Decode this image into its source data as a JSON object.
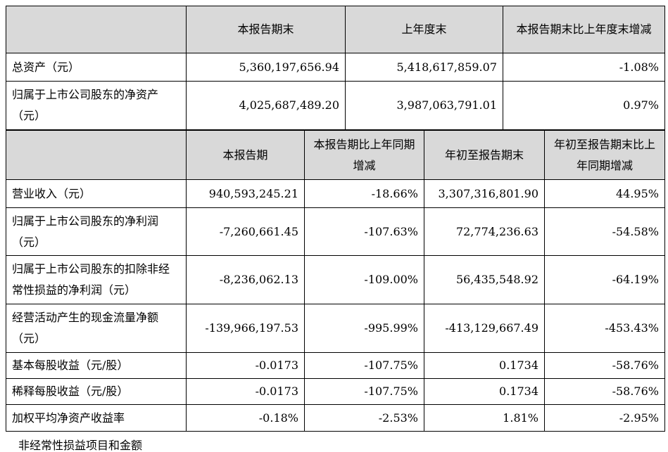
{
  "header1": {
    "cols": [
      "本报告期末",
      "上年度末",
      "本报告期末比上年度末增减"
    ]
  },
  "rows1": [
    {
      "label": "总资产（元）",
      "v1": "5,360,197,656.94",
      "v2": "5,418,617,859.07",
      "v3": "-1.08%"
    },
    {
      "label": "归属于上市公司股东的净资产（元）",
      "v1": "4,025,687,489.20",
      "v2": "3,987,063,791.01",
      "v3": "0.97%"
    }
  ],
  "header2": {
    "cols": [
      "本报告期",
      "本报告期比上年同期增减",
      "年初至报告期末",
      "年初至报告期末比上年同期增减"
    ]
  },
  "rows2": [
    {
      "label": "营业收入（元）",
      "v1": "940,593,245.21",
      "v2": "-18.66%",
      "v3": "3,307,316,801.90",
      "v4": "44.95%"
    },
    {
      "label": "归属于上市公司股东的净利润（元）",
      "v1": "-7,260,661.45",
      "v2": "-107.63%",
      "v3": "72,774,236.63",
      "v4": "-54.58%"
    },
    {
      "label": "归属于上市公司股东的扣除非经常性损益的净利润（元）",
      "v1": "-8,236,062.13",
      "v2": "-109.00%",
      "v3": "56,435,548.92",
      "v4": "-64.19%"
    },
    {
      "label": "经营活动产生的现金流量净额（元）",
      "v1": "-139,966,197.53",
      "v2": "-995.99%",
      "v3": "-413,129,667.49",
      "v4": "-453.43%"
    },
    {
      "label": "基本每股收益（元/股）",
      "v1": "-0.0173",
      "v2": "-107.75%",
      "v3": "0.1734",
      "v4": "-58.76%"
    },
    {
      "label": "稀释每股收益（元/股）",
      "v1": "-0.0173",
      "v2": "-107.75%",
      "v3": "0.1734",
      "v4": "-58.76%"
    },
    {
      "label": "加权平均净资产收益率",
      "v1": "-0.18%",
      "v2": "-2.53%",
      "v3": "1.81%",
      "v4": "-2.95%"
    }
  ],
  "footer_text": "非经常性损益项目和金额"
}
